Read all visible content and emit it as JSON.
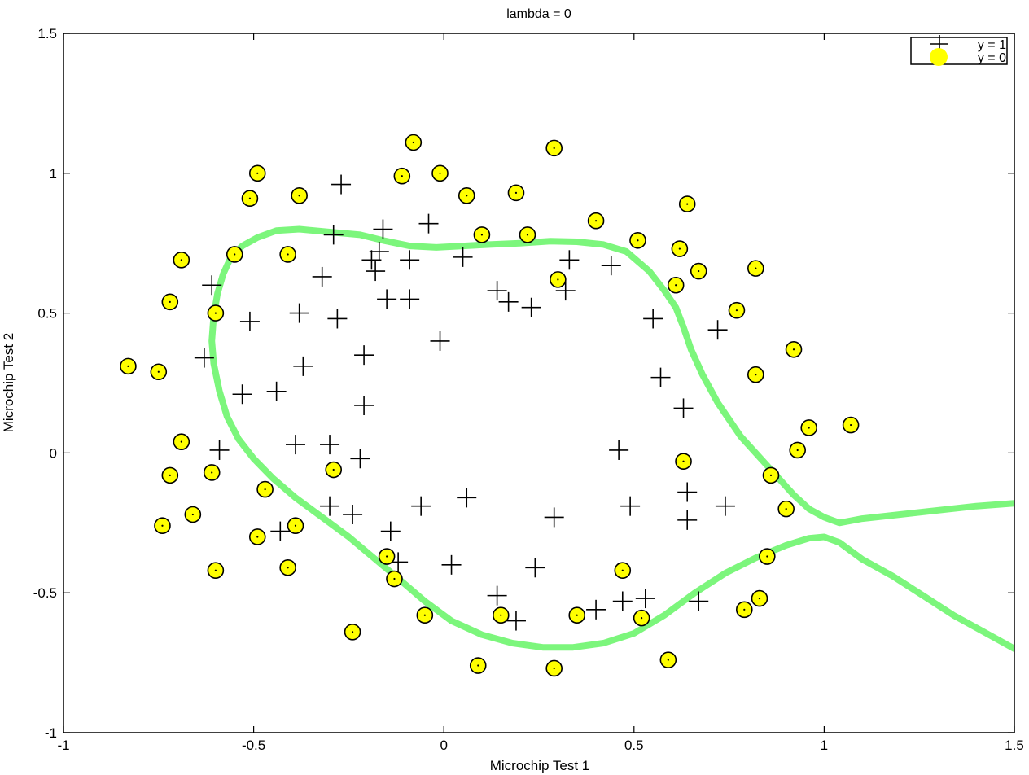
{
  "chart_data": {
    "type": "scatter",
    "title": "lambda = 0",
    "xlabel": "Microchip Test 1",
    "ylabel": "Microchip Test 2",
    "xlim": [
      -1,
      1.5
    ],
    "ylim": [
      -1,
      1.5
    ],
    "xticks": [
      "-1",
      "-0.5",
      "0",
      "0.5",
      "1",
      "1.5"
    ],
    "yticks": [
      "-1",
      "-0.5",
      "0",
      "0.5",
      "1",
      "1.5"
    ],
    "xtick_values": [
      -1,
      -0.5,
      0,
      0.5,
      1,
      1.5
    ],
    "ytick_values": [
      -1,
      -0.5,
      0,
      0.5,
      1,
      1.5
    ],
    "grid": false,
    "legend": {
      "position": "top-right",
      "entries": [
        "y = 1",
        "y = 0"
      ]
    },
    "series": [
      {
        "name": "y = 1",
        "marker": "plus",
        "color": "#000000",
        "points": [
          [
            -0.27,
            0.96
          ],
          [
            -0.16,
            0.8
          ],
          [
            -0.04,
            0.82
          ],
          [
            -0.29,
            0.78
          ],
          [
            -0.19,
            0.69
          ],
          [
            -0.17,
            0.72
          ],
          [
            -0.09,
            0.69
          ],
          [
            -0.18,
            0.65
          ],
          [
            -0.32,
            0.63
          ],
          [
            -0.61,
            0.6
          ],
          [
            -0.15,
            0.55
          ],
          [
            -0.09,
            0.55
          ],
          [
            0.05,
            0.7
          ],
          [
            0.14,
            0.58
          ],
          [
            0.17,
            0.54
          ],
          [
            0.23,
            0.52
          ],
          [
            0.33,
            0.69
          ],
          [
            0.32,
            0.58
          ],
          [
            0.44,
            0.67
          ],
          [
            -0.38,
            0.5
          ],
          [
            -0.51,
            0.47
          ],
          [
            -0.28,
            0.48
          ],
          [
            0.55,
            0.48
          ],
          [
            0.72,
            0.44
          ],
          [
            -0.01,
            0.4
          ],
          [
            -0.37,
            0.31
          ],
          [
            -0.21,
            0.35
          ],
          [
            -0.63,
            0.34
          ],
          [
            0.57,
            0.27
          ],
          [
            -0.44,
            0.22
          ],
          [
            -0.53,
            0.21
          ],
          [
            -0.21,
            0.17
          ],
          [
            0.63,
            0.16
          ],
          [
            -0.39,
            0.03
          ],
          [
            -0.3,
            0.03
          ],
          [
            -0.59,
            0.01
          ],
          [
            0.46,
            0.01
          ],
          [
            -0.22,
            -0.02
          ],
          [
            0.64,
            -0.14
          ],
          [
            0.06,
            -0.16
          ],
          [
            -0.06,
            -0.19
          ],
          [
            -0.3,
            -0.19
          ],
          [
            0.49,
            -0.19
          ],
          [
            0.74,
            -0.19
          ],
          [
            -0.24,
            -0.22
          ],
          [
            0.29,
            -0.23
          ],
          [
            0.64,
            -0.24
          ],
          [
            -0.14,
            -0.28
          ],
          [
            -0.43,
            -0.28
          ],
          [
            -0.12,
            -0.39
          ],
          [
            0.02,
            -0.4
          ],
          [
            0.24,
            -0.41
          ],
          [
            0.14,
            -0.51
          ],
          [
            0.4,
            -0.56
          ],
          [
            0.47,
            -0.53
          ],
          [
            0.53,
            -0.52
          ],
          [
            0.67,
            -0.53
          ],
          [
            0.19,
            -0.6
          ]
        ]
      },
      {
        "name": "y = 0",
        "marker": "circle",
        "color": "#ffff00",
        "points": [
          [
            -0.08,
            1.11
          ],
          [
            0.29,
            1.09
          ],
          [
            -0.49,
            1.0
          ],
          [
            -0.11,
            0.99
          ],
          [
            -0.01,
            1.0
          ],
          [
            -0.51,
            0.91
          ],
          [
            -0.38,
            0.92
          ],
          [
            0.06,
            0.92
          ],
          [
            0.19,
            0.93
          ],
          [
            0.64,
            0.89
          ],
          [
            0.4,
            0.83
          ],
          [
            0.1,
            0.78
          ],
          [
            0.22,
            0.78
          ],
          [
            0.51,
            0.76
          ],
          [
            0.62,
            0.73
          ],
          [
            -0.41,
            0.71
          ],
          [
            -0.55,
            0.71
          ],
          [
            -0.69,
            0.69
          ],
          [
            0.67,
            0.65
          ],
          [
            0.82,
            0.66
          ],
          [
            0.3,
            0.62
          ],
          [
            0.61,
            0.6
          ],
          [
            -0.72,
            0.54
          ],
          [
            -0.6,
            0.5
          ],
          [
            0.77,
            0.51
          ],
          [
            0.92,
            0.37
          ],
          [
            -0.83,
            0.31
          ],
          [
            -0.75,
            0.29
          ],
          [
            0.82,
            0.28
          ],
          [
            0.96,
            0.09
          ],
          [
            1.07,
            0.1
          ],
          [
            -0.69,
            0.04
          ],
          [
            0.93,
            0.01
          ],
          [
            0.63,
            -0.03
          ],
          [
            -0.29,
            -0.06
          ],
          [
            -0.61,
            -0.07
          ],
          [
            -0.72,
            -0.08
          ],
          [
            0.86,
            -0.08
          ],
          [
            -0.47,
            -0.13
          ],
          [
            0.9,
            -0.2
          ],
          [
            -0.66,
            -0.22
          ],
          [
            -0.74,
            -0.26
          ],
          [
            -0.39,
            -0.26
          ],
          [
            -0.49,
            -0.3
          ],
          [
            -0.15,
            -0.37
          ],
          [
            0.85,
            -0.37
          ],
          [
            -0.6,
            -0.42
          ],
          [
            -0.41,
            -0.41
          ],
          [
            0.47,
            -0.42
          ],
          [
            -0.13,
            -0.45
          ],
          [
            0.83,
            -0.52
          ],
          [
            0.79,
            -0.56
          ],
          [
            -0.05,
            -0.58
          ],
          [
            0.15,
            -0.58
          ],
          [
            0.35,
            -0.58
          ],
          [
            0.52,
            -0.59
          ],
          [
            -0.24,
            -0.64
          ],
          [
            0.59,
            -0.74
          ],
          [
            0.09,
            -0.76
          ],
          [
            0.29,
            -0.77
          ]
        ]
      }
    ],
    "decision_boundary": {
      "color": "#7cf67c",
      "curves": [
        [
          [
            1.5,
            -0.18
          ],
          [
            1.4,
            -0.19
          ],
          [
            1.3,
            -0.205
          ],
          [
            1.2,
            -0.22
          ],
          [
            1.1,
            -0.235
          ],
          [
            1.04,
            -0.25
          ],
          [
            1.0,
            -0.23
          ],
          [
            0.96,
            -0.2
          ],
          [
            0.92,
            -0.15
          ],
          [
            0.88,
            -0.09
          ],
          [
            0.84,
            -0.03
          ],
          [
            0.78,
            0.06
          ],
          [
            0.72,
            0.18
          ],
          [
            0.68,
            0.28
          ],
          [
            0.65,
            0.37
          ],
          [
            0.63,
            0.45
          ],
          [
            0.61,
            0.52
          ],
          [
            0.58,
            0.58
          ],
          [
            0.54,
            0.65
          ],
          [
            0.48,
            0.72
          ],
          [
            0.42,
            0.745
          ],
          [
            0.35,
            0.755
          ],
          [
            0.28,
            0.757
          ],
          [
            0.2,
            0.75
          ],
          [
            0.12,
            0.745
          ],
          [
            0.05,
            0.74
          ],
          [
            -0.02,
            0.735
          ],
          [
            -0.09,
            0.74
          ],
          [
            -0.16,
            0.76
          ],
          [
            -0.22,
            0.78
          ],
          [
            -0.3,
            0.79
          ],
          [
            -0.38,
            0.8
          ],
          [
            -0.44,
            0.795
          ],
          [
            -0.49,
            0.77
          ],
          [
            -0.53,
            0.74
          ],
          [
            -0.56,
            0.7
          ],
          [
            -0.58,
            0.64
          ],
          [
            -0.595,
            0.57
          ],
          [
            -0.605,
            0.49
          ],
          [
            -0.61,
            0.4
          ],
          [
            -0.605,
            0.32
          ],
          [
            -0.59,
            0.22
          ],
          [
            -0.57,
            0.13
          ],
          [
            -0.54,
            0.05
          ],
          [
            -0.5,
            -0.02
          ],
          [
            -0.45,
            -0.09
          ],
          [
            -0.39,
            -0.16
          ],
          [
            -0.32,
            -0.23
          ],
          [
            -0.25,
            -0.3
          ],
          [
            -0.18,
            -0.38
          ],
          [
            -0.11,
            -0.46
          ],
          [
            -0.05,
            -0.53
          ],
          [
            0.02,
            -0.6
          ],
          [
            0.1,
            -0.65
          ],
          [
            0.18,
            -0.68
          ],
          [
            0.26,
            -0.695
          ],
          [
            0.34,
            -0.695
          ],
          [
            0.42,
            -0.68
          ],
          [
            0.5,
            -0.645
          ],
          [
            0.58,
            -0.58
          ],
          [
            0.66,
            -0.5
          ],
          [
            0.74,
            -0.43
          ],
          [
            0.82,
            -0.375
          ],
          [
            0.9,
            -0.33
          ],
          [
            0.96,
            -0.305
          ],
          [
            1.0,
            -0.3
          ],
          [
            1.04,
            -0.32
          ],
          [
            1.1,
            -0.38
          ],
          [
            1.18,
            -0.44
          ],
          [
            1.26,
            -0.51
          ],
          [
            1.34,
            -0.58
          ],
          [
            1.42,
            -0.64
          ],
          [
            1.5,
            -0.7
          ]
        ]
      ]
    }
  }
}
